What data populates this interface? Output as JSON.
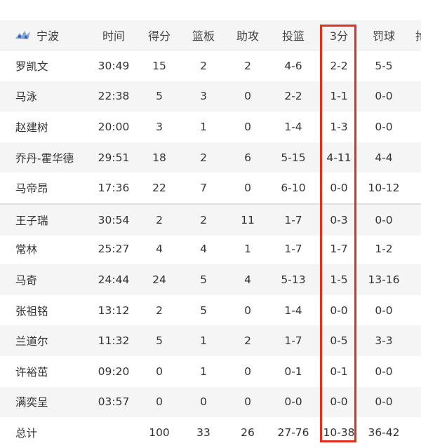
{
  "team": {
    "logo_icon": "ningbo-team-logo",
    "name": "宁波"
  },
  "columns": [
    "时间",
    "得分",
    "篮板",
    "助攻",
    "投篮",
    "3分",
    "罚球",
    "抢"
  ],
  "players": [
    {
      "name": "罗凯文",
      "min": "30:49",
      "pts": "15",
      "reb": "2",
      "ast": "2",
      "fg": "4-6",
      "tp": "2-2",
      "ft": "5-5"
    },
    {
      "name": "马泳",
      "min": "22:38",
      "pts": "5",
      "reb": "3",
      "ast": "0",
      "fg": "2-2",
      "tp": "1-1",
      "ft": "0-0"
    },
    {
      "name": "赵建树",
      "min": "20:00",
      "pts": "3",
      "reb": "1",
      "ast": "0",
      "fg": "1-4",
      "tp": "1-3",
      "ft": "0-0"
    },
    {
      "name": "乔丹-霍华德",
      "min": "29:51",
      "pts": "18",
      "reb": "2",
      "ast": "6",
      "fg": "5-15",
      "tp": "4-11",
      "ft": "4-4"
    },
    {
      "name": "马帝昂",
      "min": "17:36",
      "pts": "22",
      "reb": "7",
      "ast": "0",
      "fg": "6-10",
      "tp": "0-0",
      "ft": "10-12"
    },
    {
      "name": "王子瑞",
      "min": "30:54",
      "pts": "2",
      "reb": "2",
      "ast": "11",
      "fg": "1-7",
      "tp": "0-3",
      "ft": "0-0"
    },
    {
      "name": "常林",
      "min": "25:27",
      "pts": "4",
      "reb": "4",
      "ast": "1",
      "fg": "1-7",
      "tp": "1-7",
      "ft": "1-2"
    },
    {
      "name": "马奇",
      "min": "24:44",
      "pts": "24",
      "reb": "5",
      "ast": "4",
      "fg": "5-13",
      "tp": "1-5",
      "ft": "13-16"
    },
    {
      "name": "张祖铭",
      "min": "13:12",
      "pts": "2",
      "reb": "5",
      "ast": "0",
      "fg": "1-4",
      "tp": "0-0",
      "ft": "0-0"
    },
    {
      "name": "兰道尔",
      "min": "11:32",
      "pts": "5",
      "reb": "1",
      "ast": "2",
      "fg": "1-7",
      "tp": "0-5",
      "ft": "3-3"
    },
    {
      "name": "许裕茁",
      "min": "09:20",
      "pts": "0",
      "reb": "1",
      "ast": "0",
      "fg": "0-1",
      "tp": "0-1",
      "ft": "0-0"
    },
    {
      "name": "满奕呈",
      "min": "03:57",
      "pts": "0",
      "reb": "0",
      "ast": "0",
      "fg": "0-0",
      "tp": "0-0",
      "ft": "0-0"
    }
  ],
  "total": {
    "name": "总计",
    "min": "",
    "pts": "100",
    "reb": "33",
    "ast": "26",
    "fg": "27-76",
    "tp": "10-38",
    "ft": "36-42"
  },
  "highlight_color": "#e0301e"
}
